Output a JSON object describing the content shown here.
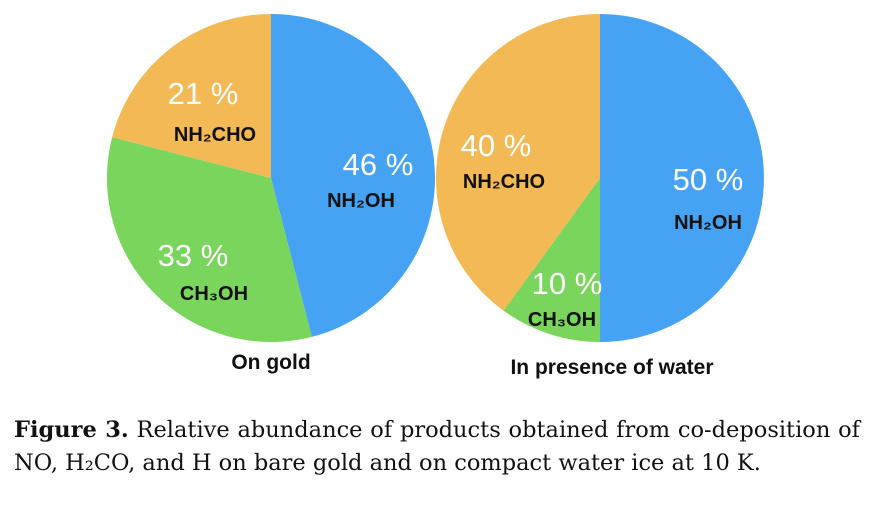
{
  "chart_data": [
    {
      "type": "pie",
      "title": "On gold",
      "slices": [
        {
          "label": "NH₂OH",
          "value": 46,
          "value_label": "46 %",
          "color": "#46a3f3"
        },
        {
          "label": "CH₃OH",
          "value": 33,
          "value_label": "33 %",
          "color": "#79d55c"
        },
        {
          "label": "NH₂CHO",
          "value": 21,
          "value_label": "21 %",
          "color": "#f2b955"
        }
      ]
    },
    {
      "type": "pie",
      "title": "In presence of water",
      "slices": [
        {
          "label": "NH₂OH",
          "value": 50,
          "value_label": "50 %",
          "color": "#46a3f3"
        },
        {
          "label": "CH₃OH",
          "value": 10,
          "value_label": "10 %",
          "color": "#79d55c"
        },
        {
          "label": "NH₂CHO",
          "value": 40,
          "value_label": "40 %",
          "color": "#f2b955"
        }
      ]
    }
  ],
  "caption": {
    "figure_label": "Figure 3.",
    "text": "Relative abundance of products obtained from co-deposition of NO, H₂CO, and H on bare gold and on compact water ice at 10 K."
  }
}
